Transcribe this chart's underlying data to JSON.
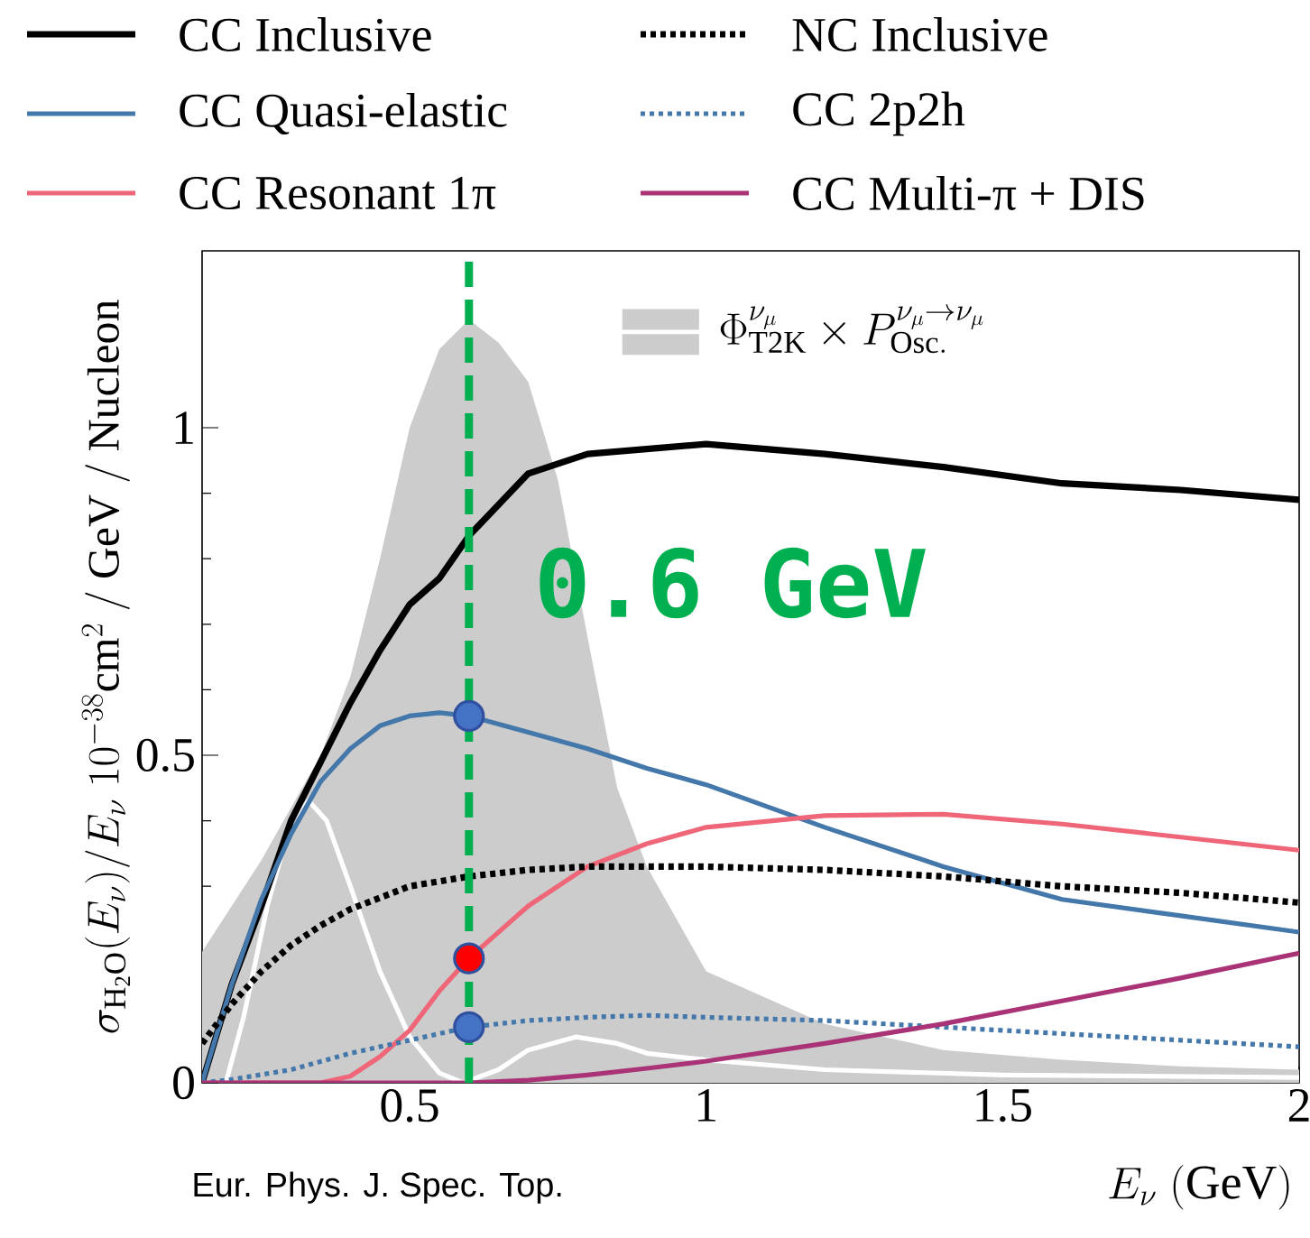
{
  "chart_data": {
    "type": "line",
    "xlabel": "E_\\nu\\ (\\mathrm{GeV})",
    "ylabel": "\\sigma_{\\mathrm{H_2O}}(E_\\nu)/E_\\nu\\ 10^{-38}\\mathrm{cm}^2\\ /\\ \\mathrm{GeV}\\ /\\ \\mathrm{Nucleon}",
    "xlim": [
      0.15,
      2
    ],
    "ylim": [
      0,
      1.27
    ],
    "xticks": [
      0.5,
      1,
      1.5,
      2
    ],
    "yticks": [
      0,
      0.5,
      1
    ],
    "legend": "top",
    "annotations": [
      "Eur. Phys. J. Spec. Top."
    ],
    "ref_lines": [
      {
        "axis": "x",
        "value": 0.6,
        "label": "0.6 GeV",
        "color": "#00b050",
        "line_style": "dashed"
      }
    ],
    "series": [
      {
        "type": "area",
        "name": "\\Phi_{\\mathrm{T2K}}^{\\nu_\\mu}\\times P_{\\mathrm{Osc.}}^{\\nu_\\mu\\to\\nu_\\mu}",
        "color": "#cccccc",
        "x": [
          0.15,
          0.2,
          0.25,
          0.3,
          0.35,
          0.4,
          0.45,
          0.5,
          0.55,
          0.6,
          0.65,
          0.7,
          0.75,
          0.8,
          0.85,
          0.9,
          1.0,
          1.2,
          1.4,
          1.6,
          1.8,
          2.0
        ],
        "values": [
          0.2,
          0.27,
          0.34,
          0.42,
          0.5,
          0.62,
          0.8,
          1.0,
          1.12,
          1.165,
          1.13,
          1.07,
          0.92,
          0.68,
          0.45,
          0.33,
          0.17,
          0.09,
          0.05,
          0.035,
          0.025,
          0.02
        ]
      },
      {
        "type": "line",
        "color": "#ffffff",
        "x": [
          0.19,
          0.22,
          0.26,
          0.3,
          0.33,
          0.36,
          0.4,
          0.45,
          0.5,
          0.55,
          0.59,
          0.65,
          0.7,
          0.78,
          0.85,
          0.9,
          1.0,
          1.2,
          1.5,
          2.0
        ],
        "values": [
          0,
          0.1,
          0.27,
          0.4,
          0.43,
          0.4,
          0.3,
          0.17,
          0.07,
          0.015,
          0,
          0.02,
          0.05,
          0.07,
          0.06,
          0.045,
          0.035,
          0.02,
          0.012,
          0.008
        ]
      },
      {
        "name": "CC Inclusive",
        "color": "#000000",
        "x": [
          0.15,
          0.2,
          0.25,
          0.3,
          0.35,
          0.4,
          0.45,
          0.5,
          0.55,
          0.6,
          0.7,
          0.8,
          1.0,
          1.2,
          1.4,
          1.6,
          1.8,
          2.0
        ],
        "values": [
          0,
          0.15,
          0.27,
          0.4,
          0.49,
          0.58,
          0.66,
          0.73,
          0.77,
          0.835,
          0.93,
          0.96,
          0.975,
          0.96,
          0.94,
          0.915,
          0.905,
          0.89
        ]
      },
      {
        "name": "CC Quasi-elastic",
        "color": "#4477aa",
        "x": [
          0.15,
          0.2,
          0.25,
          0.3,
          0.35,
          0.4,
          0.45,
          0.5,
          0.55,
          0.6,
          0.7,
          0.8,
          0.9,
          1.0,
          1.2,
          1.4,
          1.6,
          1.8,
          2.0
        ],
        "values": [
          0,
          0.15,
          0.28,
          0.38,
          0.46,
          0.51,
          0.545,
          0.56,
          0.565,
          0.56,
          0.535,
          0.51,
          0.48,
          0.455,
          0.39,
          0.33,
          0.28,
          0.255,
          0.23
        ]
      },
      {
        "name": "CC Resonant 1π",
        "color": "#ee6677",
        "x": [
          0.15,
          0.35,
          0.4,
          0.45,
          0.5,
          0.55,
          0.6,
          0.7,
          0.8,
          0.9,
          1.0,
          1.2,
          1.4,
          1.6,
          1.8,
          2.0
        ],
        "values": [
          0,
          0,
          0.01,
          0.04,
          0.08,
          0.14,
          0.19,
          0.27,
          0.33,
          0.365,
          0.39,
          0.408,
          0.41,
          0.395,
          0.375,
          0.355
        ]
      },
      {
        "name": "NC Inclusive",
        "color": "#000000",
        "line_style": "dotted",
        "x": [
          0.15,
          0.2,
          0.25,
          0.3,
          0.35,
          0.4,
          0.5,
          0.6,
          0.7,
          0.8,
          1.0,
          1.2,
          1.4,
          1.6,
          1.8,
          2.0
        ],
        "values": [
          0.06,
          0.12,
          0.17,
          0.21,
          0.24,
          0.265,
          0.3,
          0.315,
          0.325,
          0.33,
          0.33,
          0.325,
          0.315,
          0.3,
          0.29,
          0.275
        ]
      },
      {
        "name": "CC 2p2h",
        "color": "#4477aa",
        "line_style": "dotted",
        "x": [
          0.15,
          0.2,
          0.3,
          0.4,
          0.5,
          0.6,
          0.7,
          0.8,
          0.9,
          1.0,
          1.2,
          1.4,
          1.6,
          1.8,
          2.0
        ],
        "values": [
          0,
          0.005,
          0.02,
          0.045,
          0.065,
          0.085,
          0.095,
          0.1,
          0.103,
          0.1,
          0.095,
          0.085,
          0.075,
          0.065,
          0.055
        ]
      },
      {
        "name": "CC Multi-π + DIS",
        "color": "#aa3377",
        "x": [
          0.15,
          0.6,
          0.7,
          0.8,
          0.9,
          1.0,
          1.2,
          1.4,
          1.6,
          1.8,
          2.0
        ],
        "values": [
          0,
          0,
          0.004,
          0.012,
          0.022,
          0.033,
          0.06,
          0.09,
          0.125,
          0.16,
          0.198
        ]
      },
      {
        "type": "scatter",
        "x": [
          0.6,
          0.6,
          0.6
        ],
        "values": [
          0.56,
          0.19,
          0.085
        ],
        "colors": [
          "#4472c4",
          "#ff0000",
          "#4472c4"
        ]
      }
    ]
  }
}
